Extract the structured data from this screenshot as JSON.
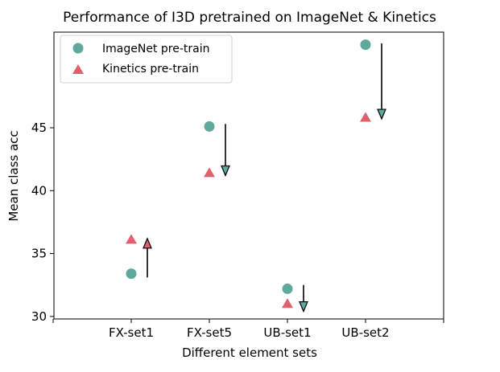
{
  "chart_data": {
    "type": "scatter",
    "title": "Performance of I3D pretrained on ImageNet & Kinetics",
    "xlabel": "Different element sets",
    "ylabel": "Mean class acc",
    "categories": [
      "FX-set1",
      "FX-set5",
      "UB-set1",
      "UB-set2"
    ],
    "ylim": [
      29.8,
      52.6
    ],
    "yticks": [
      30,
      35,
      40,
      45
    ],
    "grid": false,
    "legend_position": "top-left",
    "series": [
      {
        "name": "ImageNet pre-train",
        "marker": "circle",
        "color": "#5fa89c",
        "values": [
          33.4,
          45.1,
          32.2,
          51.6
        ]
      },
      {
        "name": "Kinetics pre-train",
        "marker": "triangle",
        "color": "#e0606b",
        "values": [
          36.1,
          41.4,
          31.0,
          45.8
        ]
      }
    ],
    "arrows": [
      {
        "category": "FX-set1",
        "from": 33.1,
        "to": 36.2,
        "direction": "up",
        "head_color": "#e0606b"
      },
      {
        "category": "FX-set5",
        "from": 45.3,
        "to": 41.2,
        "direction": "down",
        "head_color": "#5fa89c"
      },
      {
        "category": "UB-set1",
        "from": 32.5,
        "to": 30.4,
        "direction": "down",
        "head_color": "#5fa89c"
      },
      {
        "category": "UB-set2",
        "from": 51.7,
        "to": 45.7,
        "direction": "down",
        "head_color": "#5fa89c"
      }
    ]
  }
}
